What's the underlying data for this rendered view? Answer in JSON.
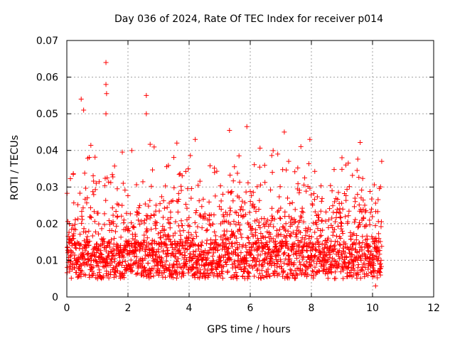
{
  "chart_data": {
    "type": "scatter",
    "title": "Day 036 of 2024, Rate Of TEC Index for receiver p014",
    "xlabel": "GPS time / hours",
    "ylabel": "ROTI / TECUs",
    "xlim": [
      0,
      12
    ],
    "ylim": [
      0,
      0.07
    ],
    "xticks": [
      "0",
      "2",
      "4",
      "6",
      "8",
      "10",
      "12"
    ],
    "yticks": [
      "0",
      "0.01",
      "0.02",
      "0.03",
      "0.04",
      "0.05",
      "0.06",
      "0.07"
    ],
    "grid": true,
    "marker": "+",
    "color": "#ff0000",
    "series": [
      {
        "name": "ROTI",
        "x_range": [
          0,
          10.3
        ],
        "baseline_range": [
          0.005,
          0.015
        ],
        "notable_points": [
          {
            "x": 0.47,
            "y": 0.054
          },
          {
            "x": 0.55,
            "y": 0.051
          },
          {
            "x": 1.28,
            "y": 0.064
          },
          {
            "x": 1.28,
            "y": 0.058
          },
          {
            "x": 1.3,
            "y": 0.0555
          },
          {
            "x": 1.28,
            "y": 0.05
          },
          {
            "x": 2.6,
            "y": 0.055
          },
          {
            "x": 2.6,
            "y": 0.05
          },
          {
            "x": 3.6,
            "y": 0.042
          },
          {
            "x": 4.2,
            "y": 0.043
          },
          {
            "x": 6.9,
            "y": 0.039
          },
          {
            "x": 7.95,
            "y": 0.043
          },
          {
            "x": 9.0,
            "y": 0.038
          },
          {
            "x": 10.3,
            "y": 0.037
          },
          {
            "x": 10.1,
            "y": 0.003
          }
        ]
      }
    ]
  }
}
